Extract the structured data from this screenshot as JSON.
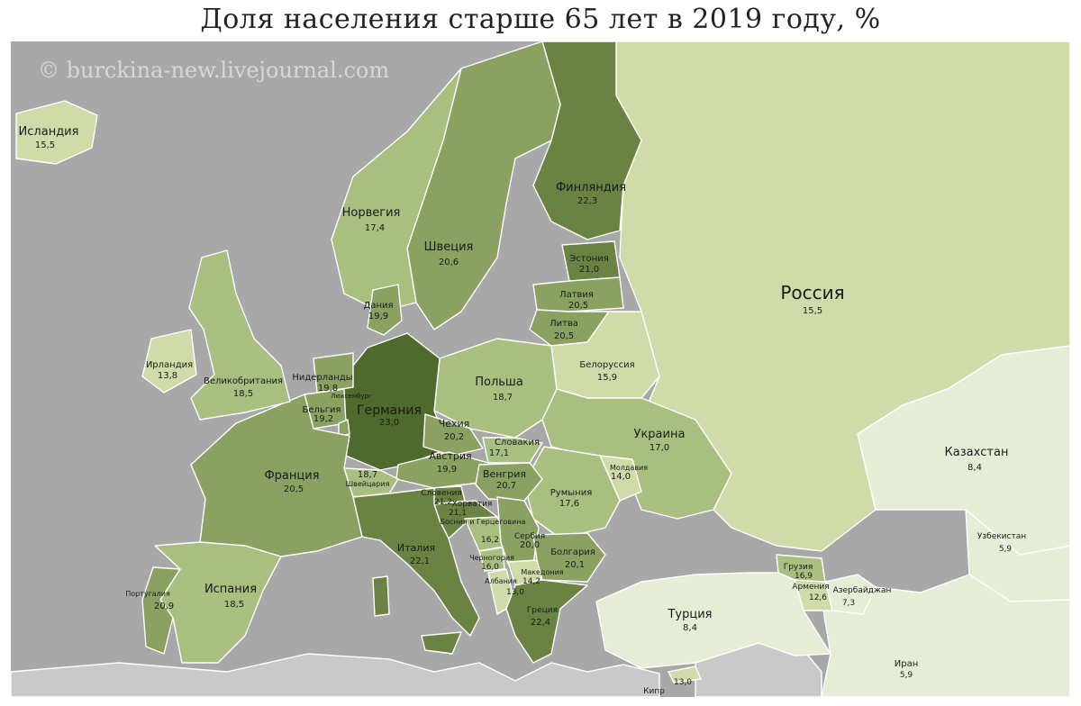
{
  "title": "Доля населения старше 65 лет в 2019 году, %",
  "watermark": "© burckina-new.livejournal.com",
  "palette": {
    "sea": "#a8a8a8",
    "foreign_land": "#c9c9c9",
    "scale": [
      "#e6edd6",
      "#cfdcaa",
      "#a9bf7f",
      "#8aa162",
      "#6a8343",
      "#4e6a2c"
    ]
  },
  "countries": [
    {
      "id": "iceland",
      "name": "Исландия",
      "value": "15,5"
    },
    {
      "id": "norway",
      "name": "Норвегия",
      "value": "17,4"
    },
    {
      "id": "sweden",
      "name": "Швеция",
      "value": "20,6"
    },
    {
      "id": "finland",
      "name": "Финляндия",
      "value": "22,3"
    },
    {
      "id": "russia",
      "name": "Россия",
      "value": "15,5"
    },
    {
      "id": "estonia",
      "name": "Эстония",
      "value": "21,0"
    },
    {
      "id": "latvia",
      "name": "Латвия",
      "value": "20,5"
    },
    {
      "id": "lithuania",
      "name": "Литва",
      "value": "20,5"
    },
    {
      "id": "denmark",
      "name": "Дания",
      "value": "19,9"
    },
    {
      "id": "ireland",
      "name": "Ирландия",
      "value": "13,8"
    },
    {
      "id": "uk",
      "name": "Великобритания",
      "value": "18,5"
    },
    {
      "id": "netherlands",
      "name": "Нидерланды",
      "value": "19,8"
    },
    {
      "id": "belgium",
      "name": "Бельгия",
      "value": "19,2"
    },
    {
      "id": "luxembourg",
      "name": "Люксембург",
      "value": ""
    },
    {
      "id": "germany",
      "name": "Германия",
      "value": "23,0"
    },
    {
      "id": "poland",
      "name": "Польша",
      "value": "18,7"
    },
    {
      "id": "belarus",
      "name": "Белоруссия",
      "value": "15,9"
    },
    {
      "id": "ukraine",
      "name": "Украина",
      "value": "17,0"
    },
    {
      "id": "czechia",
      "name": "Чехия",
      "value": "20,2"
    },
    {
      "id": "slovakia",
      "name": "Словакия",
      "value": "17,1"
    },
    {
      "id": "austria",
      "name": "Австрия",
      "value": "19,9"
    },
    {
      "id": "hungary",
      "name": "Венгрия",
      "value": "20,7"
    },
    {
      "id": "moldova",
      "name": "Молдавия",
      "value": "14,0"
    },
    {
      "id": "romania",
      "name": "Румыния",
      "value": "17,6"
    },
    {
      "id": "switzerland",
      "name": "Швейцария",
      "value": "18,7"
    },
    {
      "id": "france",
      "name": "Франция",
      "value": "20,5"
    },
    {
      "id": "slovenia",
      "name": "Словения",
      "value": "21,2"
    },
    {
      "id": "croatia",
      "name": "Хорватия",
      "value": "21,1"
    },
    {
      "id": "bosnia",
      "name": "Босния и Герцеговина",
      "value": "16,2"
    },
    {
      "id": "serbia",
      "name": "Сербия",
      "value": "20,0"
    },
    {
      "id": "montenegro",
      "name": "Черногория",
      "value": "16,0"
    },
    {
      "id": "albania",
      "name": "Албания",
      "value": "13,0"
    },
    {
      "id": "macedonia",
      "name": "Македония",
      "value": "14,2"
    },
    {
      "id": "bulgaria",
      "name": "Болгария",
      "value": "20,1"
    },
    {
      "id": "greece",
      "name": "Греция",
      "value": "22,4"
    },
    {
      "id": "italy",
      "name": "Италия",
      "value": "22,1"
    },
    {
      "id": "spain",
      "name": "Испания",
      "value": "18,5"
    },
    {
      "id": "portugal",
      "name": "Португалия",
      "value": "20,9"
    },
    {
      "id": "turkey",
      "name": "Турция",
      "value": "8,4"
    },
    {
      "id": "georgia",
      "name": "Грузия",
      "value": "16,9"
    },
    {
      "id": "armenia",
      "name": "Армения",
      "value": "12,6"
    },
    {
      "id": "azerbaijan",
      "name": "Азербайджан",
      "value": "7,3"
    },
    {
      "id": "kazakhstan",
      "name": "Казахстан",
      "value": "8,4"
    },
    {
      "id": "uzbekistan",
      "name": "Узбекистан",
      "value": "5,9"
    },
    {
      "id": "iran",
      "name": "Иран",
      "value": "5,9"
    },
    {
      "id": "cyprus",
      "name": "Кипр",
      "value": "13,0"
    }
  ]
}
